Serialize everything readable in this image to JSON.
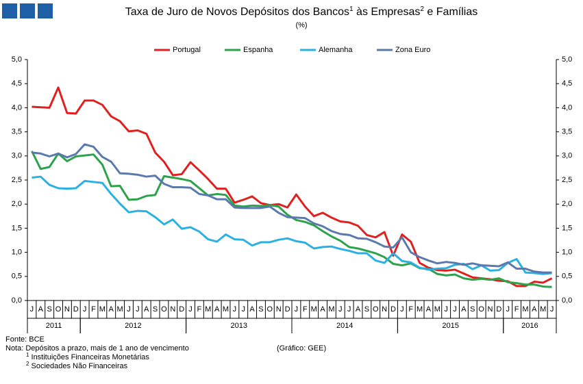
{
  "chart_data": {
    "type": "line",
    "title_parts": [
      "Taxa de Juro de Novos Depósitos dos Bancos",
      "1",
      " às Empresas",
      "2",
      " e Famílias"
    ],
    "subtitle": "(%)",
    "categories": [
      "J",
      "A",
      "S",
      "O",
      "N",
      "D",
      "J",
      "F",
      "M",
      "A",
      "M",
      "J",
      "J",
      "A",
      "S",
      "O",
      "N",
      "D",
      "J",
      "F",
      "M",
      "A",
      "M",
      "J",
      "J",
      "A",
      "S",
      "O",
      "N",
      "D",
      "J",
      "F",
      "M",
      "A",
      "M",
      "J",
      "J",
      "A",
      "S",
      "O",
      "N",
      "D",
      "J",
      "F",
      "M",
      "A",
      "M",
      "J",
      "J",
      "A",
      "S",
      "O",
      "N",
      "D",
      "J",
      "F",
      "M",
      "A",
      "M",
      "J"
    ],
    "year_groups": [
      {
        "label": "2011",
        "months": 6
      },
      {
        "label": "2012",
        "months": 12
      },
      {
        "label": "2013",
        "months": 12
      },
      {
        "label": "2014",
        "months": 12
      },
      {
        "label": "2015",
        "months": 12
      },
      {
        "label": "2016",
        "months": 6
      }
    ],
    "series": [
      {
        "name": "Portugal",
        "color": "#e0201e",
        "values": [
          4.02,
          4.01,
          4.0,
          4.42,
          3.89,
          3.88,
          4.15,
          4.15,
          4.06,
          3.82,
          3.72,
          3.51,
          3.53,
          3.46,
          3.07,
          2.88,
          2.6,
          2.62,
          2.87,
          2.7,
          2.52,
          2.32,
          2.32,
          2.03,
          2.09,
          2.16,
          2.02,
          1.98,
          2.0,
          1.93,
          2.2,
          1.95,
          1.75,
          1.82,
          1.72,
          1.64,
          1.62,
          1.55,
          1.36,
          1.31,
          1.42,
          0.93,
          1.37,
          1.22,
          0.78,
          0.68,
          0.63,
          0.62,
          0.64,
          0.56,
          0.48,
          0.46,
          0.44,
          0.41,
          0.4,
          0.3,
          0.3,
          0.39,
          0.37,
          0.46
        ]
      },
      {
        "name": "Espanha",
        "color": "#2ca24a",
        "values": [
          3.1,
          2.73,
          2.77,
          3.05,
          2.89,
          2.99,
          3.01,
          3.03,
          2.82,
          2.37,
          2.38,
          2.09,
          2.1,
          2.17,
          2.19,
          2.58,
          2.55,
          2.52,
          2.48,
          2.33,
          2.18,
          2.21,
          2.19,
          1.97,
          1.95,
          1.97,
          1.96,
          1.98,
          1.95,
          1.78,
          1.67,
          1.63,
          1.56,
          1.44,
          1.33,
          1.24,
          1.11,
          1.08,
          1.03,
          0.98,
          0.9,
          0.76,
          0.73,
          0.77,
          0.67,
          0.66,
          0.55,
          0.52,
          0.54,
          0.46,
          0.43,
          0.45,
          0.43,
          0.46,
          0.38,
          0.36,
          0.33,
          0.33,
          0.29,
          0.28
        ]
      },
      {
        "name": "Alemanha",
        "color": "#2ab0e2",
        "values": [
          2.55,
          2.57,
          2.4,
          2.33,
          2.32,
          2.33,
          2.48,
          2.46,
          2.44,
          2.21,
          2.01,
          1.83,
          1.86,
          1.85,
          1.73,
          1.58,
          1.68,
          1.49,
          1.52,
          1.43,
          1.27,
          1.22,
          1.37,
          1.27,
          1.26,
          1.14,
          1.21,
          1.21,
          1.26,
          1.29,
          1.23,
          1.2,
          1.08,
          1.11,
          1.12,
          1.07,
          1.03,
          0.98,
          0.98,
          0.83,
          0.78,
          0.98,
          0.82,
          0.79,
          0.68,
          0.64,
          0.66,
          0.67,
          0.74,
          0.76,
          0.65,
          0.73,
          0.62,
          0.63,
          0.78,
          0.86,
          0.58,
          0.57,
          0.55,
          0.57
        ]
      },
      {
        "name": "Zona Euro",
        "color": "#5b79ad",
        "values": [
          3.07,
          3.05,
          2.99,
          3.05,
          2.97,
          3.04,
          3.24,
          3.19,
          2.98,
          2.88,
          2.64,
          2.63,
          2.61,
          2.57,
          2.59,
          2.42,
          2.35,
          2.35,
          2.34,
          2.21,
          2.18,
          2.1,
          2.1,
          1.93,
          1.92,
          1.92,
          1.92,
          1.95,
          1.82,
          1.73,
          1.72,
          1.71,
          1.6,
          1.54,
          1.44,
          1.38,
          1.36,
          1.29,
          1.28,
          1.21,
          1.12,
          1.1,
          1.31,
          1.0,
          0.9,
          0.83,
          0.77,
          0.8,
          0.78,
          0.74,
          0.77,
          0.73,
          0.72,
          0.71,
          0.79,
          0.66,
          0.66,
          0.6,
          0.58,
          0.58
        ]
      }
    ],
    "ylim": [
      0,
      5
    ],
    "yticks": [
      {
        "value": 0,
        "label": "0,0"
      },
      {
        "value": 0.5,
        "label": "0,5"
      },
      {
        "value": 1,
        "label": "1,0"
      },
      {
        "value": 1.5,
        "label": "1,5"
      },
      {
        "value": 2,
        "label": "2,0"
      },
      {
        "value": 2.5,
        "label": "2,5"
      },
      {
        "value": 3,
        "label": "3,0"
      },
      {
        "value": 3.5,
        "label": "3,5"
      },
      {
        "value": 4,
        "label": "4,0"
      },
      {
        "value": 4.5,
        "label": "4,5"
      },
      {
        "value": 5,
        "label": "5,0"
      }
    ],
    "grid": false,
    "mirror_y_axis": true,
    "legend": "top",
    "source": "Fonte: BCE",
    "note": "Nota: Depósitos a prazo, mais de 1 ano de vencimento",
    "credit": "(Gráfico: GEE)",
    "footnotes": [
      {
        "mark": "1",
        "text": " Instituições Financeiras Monetárias"
      },
      {
        "mark": "2",
        "text": " Sociedades Não Financeiras"
      }
    ]
  }
}
